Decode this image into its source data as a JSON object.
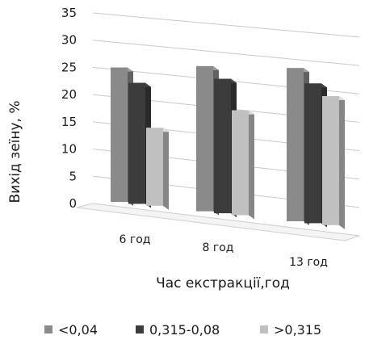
{
  "chart_data": {
    "type": "bar",
    "categories": [
      "6 год",
      "8 год",
      "13 год"
    ],
    "series": [
      {
        "name": "<0,04",
        "values": [
          25,
          27,
          28.5
        ],
        "color": "#8a8a8a"
      },
      {
        "name": "0,315-0,08",
        "values": [
          22.5,
          25,
          26
        ],
        "color": "#3c3c3c"
      },
      {
        "name": ">0,315",
        "values": [
          14.5,
          19.5,
          24
        ],
        "color": "#c0c0c0"
      }
    ],
    "xlabel": "Час екстракції,год",
    "ylabel": "Вихід зеїну, %",
    "ylim": [
      0,
      35
    ],
    "yticks": [
      0,
      5,
      10,
      15,
      20,
      25,
      30,
      35
    ],
    "grid": true,
    "legend": "bottom"
  }
}
